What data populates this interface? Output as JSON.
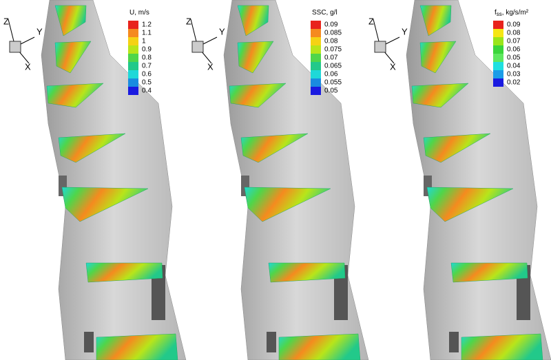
{
  "triad": {
    "x": "X",
    "y": "Y",
    "z": "Z"
  },
  "panels": [
    {
      "legend": {
        "title": {
          "main": "U, m/s"
        },
        "levels": [
          {
            "label": "1.2",
            "color": "#e8231c"
          },
          {
            "label": "1.1",
            "color": "#f58a1f"
          },
          {
            "label": "1",
            "color": "#f5d214"
          },
          {
            "label": "0.9",
            "color": "#b8e51a"
          },
          {
            "label": "0.8",
            "color": "#4fd64a"
          },
          {
            "label": "0.7",
            "color": "#22c98a"
          },
          {
            "label": "0.6",
            "color": "#1fd8d8"
          },
          {
            "label": "0.5",
            "color": "#1a8ce0"
          },
          {
            "label": "0.4",
            "color": "#1a1ae0"
          }
        ]
      }
    },
    {
      "legend": {
        "title": {
          "main": "SSC, g/l"
        },
        "levels": [
          {
            "label": "0.09",
            "color": "#e8231c"
          },
          {
            "label": "0.085",
            "color": "#f58a1f"
          },
          {
            "label": "0.08",
            "color": "#f5d214"
          },
          {
            "label": "0.075",
            "color": "#b8e51a"
          },
          {
            "label": "0.07",
            "color": "#4fd64a"
          },
          {
            "label": "0.065",
            "color": "#22c98a"
          },
          {
            "label": "0.06",
            "color": "#1fd8d8"
          },
          {
            "label": "0.055",
            "color": "#1a8ce0"
          },
          {
            "label": "0.05",
            "color": "#1a1ae0"
          }
        ]
      }
    },
    {
      "legend": {
        "title": {
          "main": "f",
          "sub": "ss",
          "rest": ", kg/s/m²"
        },
        "levels": [
          {
            "label": "0.09",
            "color": "#e8231c"
          },
          {
            "label": "0.08",
            "color": "#f5e614"
          },
          {
            "label": "0.07",
            "color": "#9ae51a"
          },
          {
            "label": "0.06",
            "color": "#3ad63a"
          },
          {
            "label": "0.05",
            "color": "#5ee85e"
          },
          {
            "label": "0.04",
            "color": "#1fe0e0"
          },
          {
            "label": "0.03",
            "color": "#1a9ce8"
          },
          {
            "label": "0.02",
            "color": "#1a1ae0"
          }
        ]
      }
    }
  ]
}
